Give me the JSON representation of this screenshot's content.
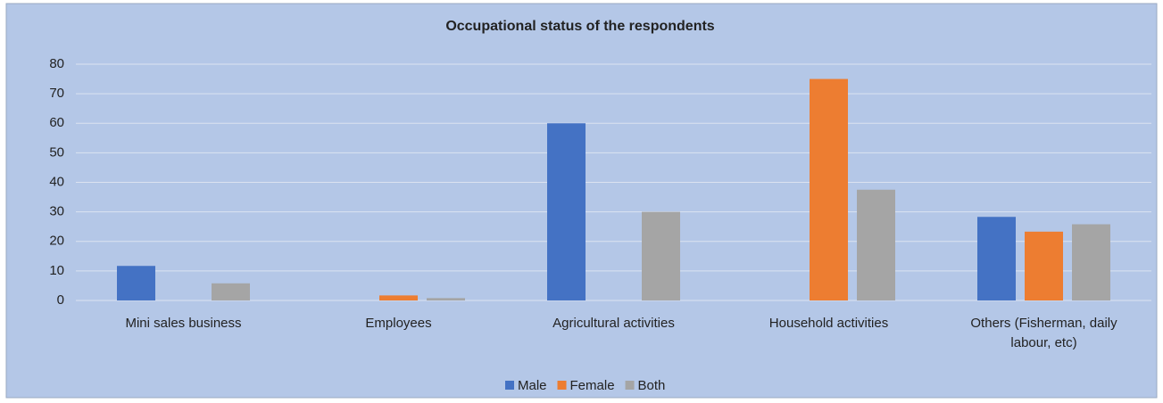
{
  "chart_data": {
    "type": "bar",
    "title": "Occupational status of the respondents",
    "categories": [
      "Mini sales business",
      "Employees",
      "Agricultural activities",
      "Household activities",
      "Others (Fisherman, daily labour, etc)"
    ],
    "series": [
      {
        "name": "Male",
        "color": "#4472c4",
        "values": [
          11.7,
          0,
          60,
          0,
          28.3
        ]
      },
      {
        "name": "Female",
        "color": "#ed7d31",
        "values": [
          0,
          1.7,
          0,
          75,
          23.3
        ]
      },
      {
        "name": "Both",
        "color": "#a5a5a5",
        "values": [
          5.8,
          0.8,
          30,
          37.5,
          25.8
        ]
      }
    ],
    "ylim": [
      0,
      80
    ],
    "yticks": [
      0,
      10,
      20,
      30,
      40,
      50,
      60,
      70,
      80
    ],
    "grid": true,
    "legend": "bottom"
  }
}
